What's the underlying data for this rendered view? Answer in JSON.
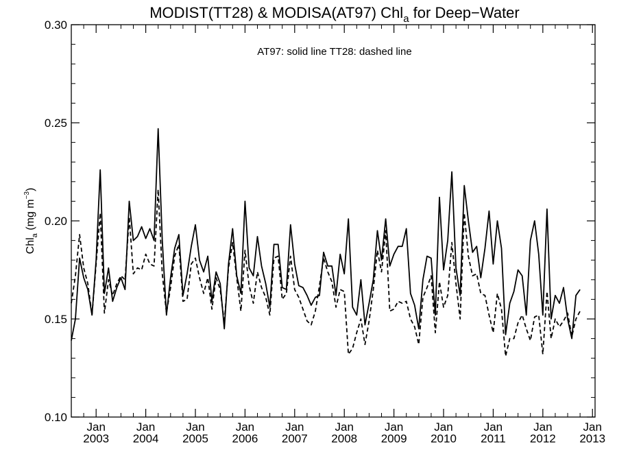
{
  "chart_data": {
    "type": "line",
    "title_prefix": "MODIST(TT28) & MODISA(AT97)  Chl",
    "title_sub": "a",
    "title_suffix": " for Deep−Water",
    "ylabel_prefix": "Chl",
    "ylabel_sub": "a",
    "ylabel_units": " (mg m",
    "ylabel_exp": "−3",
    "ylabel_close": ")",
    "annotation": "AT97: solid line   TT28: dashed line",
    "xlim": [
      "2002-07-01",
      "2013-01-20"
    ],
    "ylim": [
      0.1,
      0.3
    ],
    "yticks": [
      "0.10",
      "0.15",
      "0.20",
      "0.25",
      "0.30"
    ],
    "ytick_values": [
      0.1,
      0.15,
      0.2,
      0.25,
      0.3
    ],
    "xticks": [
      {
        "month": "Jan",
        "year": "2003",
        "date": "2003-01-01"
      },
      {
        "month": "Jan",
        "year": "2004",
        "date": "2004-01-01"
      },
      {
        "month": "Jan",
        "year": "2005",
        "date": "2005-01-01"
      },
      {
        "month": "Jan",
        "year": "2006",
        "date": "2006-01-01"
      },
      {
        "month": "Jan",
        "year": "2007",
        "date": "2007-01-01"
      },
      {
        "month": "Jan",
        "year": "2008",
        "date": "2008-01-01"
      },
      {
        "month": "Jan",
        "year": "2009",
        "date": "2009-01-01"
      },
      {
        "month": "Jan",
        "year": "2010",
        "date": "2010-01-01"
      },
      {
        "month": "Jan",
        "year": "2011",
        "date": "2011-01-01"
      },
      {
        "month": "Jan",
        "year": "2012",
        "date": "2012-01-01"
      },
      {
        "month": "Jan",
        "year": "2013",
        "date": "2013-01-01"
      }
    ],
    "grid": false,
    "series": [
      {
        "name": "AT97",
        "style": "solid",
        "color": "#000000",
        "start": "2002-07",
        "values": [
          0.139,
          0.15,
          0.181,
          0.171,
          0.165,
          0.152,
          0.18,
          0.226,
          0.163,
          0.176,
          0.159,
          0.166,
          0.171,
          0.165,
          0.21,
          0.19,
          0.192,
          0.197,
          0.191,
          0.196,
          0.19,
          0.247,
          0.19,
          0.152,
          0.171,
          0.186,
          0.193,
          0.162,
          0.173,
          0.187,
          0.198,
          0.18,
          0.174,
          0.182,
          0.159,
          0.174,
          0.168,
          0.145,
          0.178,
          0.196,
          0.172,
          0.163,
          0.21,
          0.176,
          0.172,
          0.192,
          0.177,
          0.168,
          0.156,
          0.188,
          0.188,
          0.166,
          0.165,
          0.198,
          0.178,
          0.167,
          0.166,
          0.162,
          0.157,
          0.161,
          0.162,
          0.184,
          0.177,
          0.177,
          0.162,
          0.183,
          0.173,
          0.201,
          0.156,
          0.152,
          0.17,
          0.147,
          0.158,
          0.17,
          0.195,
          0.18,
          0.201,
          0.177,
          0.183,
          0.187,
          0.187,
          0.196,
          0.163,
          0.157,
          0.145,
          0.17,
          0.182,
          0.181,
          0.152,
          0.212,
          0.175,
          0.19,
          0.225,
          0.176,
          0.162,
          0.218,
          0.2,
          0.184,
          0.187,
          0.171,
          0.186,
          0.205,
          0.178,
          0.2,
          0.186,
          0.142,
          0.158,
          0.164,
          0.175,
          0.172,
          0.152,
          0.19,
          0.2,
          0.183,
          0.152,
          0.206,
          0.15,
          0.162,
          0.158,
          0.166,
          0.15,
          0.14,
          0.162,
          0.165
        ]
      },
      {
        "name": "TT28",
        "style": "dashed",
        "color": "#000000",
        "start": "2002-07",
        "values": [
          0.158,
          0.172,
          0.193,
          0.176,
          0.168,
          0.152,
          0.178,
          0.204,
          0.153,
          0.17,
          0.162,
          0.168,
          0.172,
          0.17,
          0.202,
          0.173,
          0.176,
          0.175,
          0.183,
          0.178,
          0.177,
          0.216,
          0.173,
          0.153,
          0.166,
          0.182,
          0.188,
          0.159,
          0.16,
          0.178,
          0.181,
          0.171,
          0.163,
          0.171,
          0.155,
          0.171,
          0.165,
          0.148,
          0.176,
          0.189,
          0.171,
          0.154,
          0.185,
          0.167,
          0.158,
          0.174,
          0.166,
          0.161,
          0.152,
          0.181,
          0.182,
          0.16,
          0.163,
          0.182,
          0.165,
          0.161,
          0.155,
          0.149,
          0.147,
          0.154,
          0.167,
          0.181,
          0.174,
          0.169,
          0.156,
          0.165,
          0.164,
          0.132,
          0.135,
          0.143,
          0.15,
          0.137,
          0.149,
          0.165,
          0.185,
          0.174,
          0.195,
          0.154,
          0.155,
          0.159,
          0.158,
          0.159,
          0.15,
          0.146,
          0.137,
          0.161,
          0.166,
          0.172,
          0.143,
          0.169,
          0.156,
          0.162,
          0.189,
          0.168,
          0.15,
          0.204,
          0.182,
          0.172,
          0.173,
          0.163,
          0.162,
          0.152,
          0.143,
          0.163,
          0.155,
          0.131,
          0.14,
          0.14,
          0.148,
          0.152,
          0.145,
          0.139,
          0.151,
          0.152,
          0.132,
          0.164,
          0.14,
          0.15,
          0.146,
          0.149,
          0.153,
          0.141,
          0.15,
          0.154
        ]
      }
    ]
  }
}
